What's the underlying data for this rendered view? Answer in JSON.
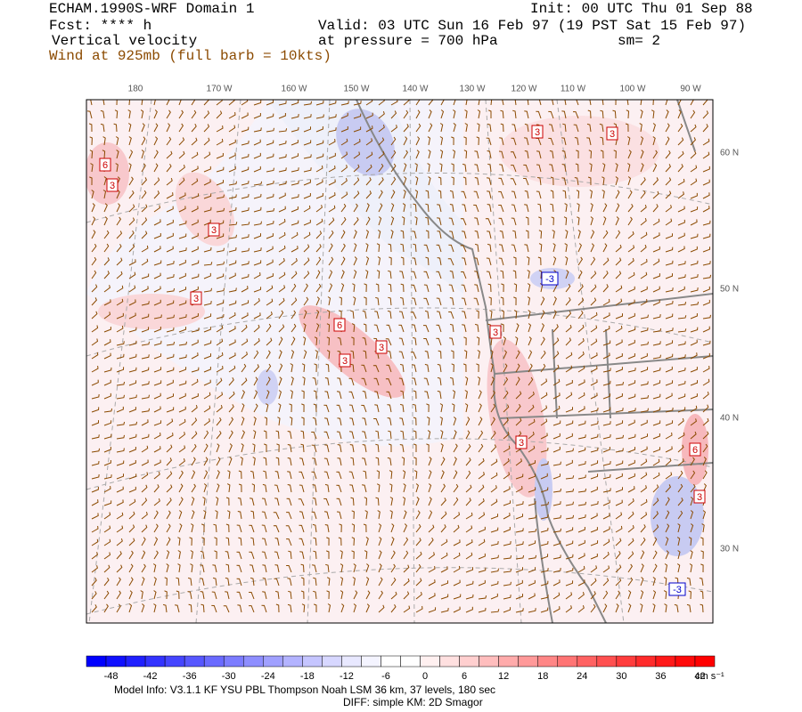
{
  "header": {
    "title": "ECHAM.1990S-WRF Domain 1",
    "init": "Init: 00 UTC Thu 01 Sep 88",
    "fcst": "Fcst: **** h",
    "valid": "Valid: 03 UTC Sun 16 Feb 97 (19 PST Sat 15 Feb 97)",
    "field": "Vertical velocity",
    "level": "at pressure =  700 hPa",
    "smooth": "sm= 2",
    "wind": "Wind at 925mb (full barb = 10kts)"
  },
  "map": {
    "lon_labels": [
      "180",
      "170 W",
      "160 W",
      "150 W",
      "140 W",
      "130 W",
      "120 W",
      "110 W",
      "100 W",
      "90 W"
    ],
    "lat_labels": [
      "60 N",
      "50 N",
      "40 N",
      "30 N"
    ],
    "contour_labels": [
      "6",
      "3",
      "3",
      "3",
      "6",
      "3",
      "3",
      "3",
      "3",
      "3",
      "3",
      "6",
      "3",
      "-3",
      "-3"
    ]
  },
  "colorbar": {
    "labels": [
      -48,
      -42,
      -36,
      -30,
      -24,
      -18,
      -12,
      -6,
      0,
      6,
      12,
      18,
      24,
      30,
      36,
      42
    ],
    "units": "cm s⁻¹",
    "colors": [
      "#0000ff",
      "#1010ff",
      "#2020ff",
      "#3333ff",
      "#4545ff",
      "#5757ff",
      "#6a6aff",
      "#7c7cff",
      "#8e8eff",
      "#a0a0ff",
      "#b3b3ff",
      "#c5c5ff",
      "#d7d7ff",
      "#e8e8ff",
      "#f4f4ff",
      "#ffffff",
      "#ffffff",
      "#fff0f0",
      "#ffe0e0",
      "#ffcfcf",
      "#ffbdbd",
      "#ffabab",
      "#ff9999",
      "#ff8686",
      "#ff7474",
      "#ff6262",
      "#ff5050",
      "#ff3d3d",
      "#ff2b2b",
      "#ff1919",
      "#ff0a0a",
      "#ff0000"
    ]
  },
  "footer": {
    "model_info": "Model Info: V3.1.1    KF       YSU PBL   Thompson     Noah LSM  36 km,    37 levels,  180 sec",
    "diff": "DIFF: simple KM: 2D Smagor"
  }
}
